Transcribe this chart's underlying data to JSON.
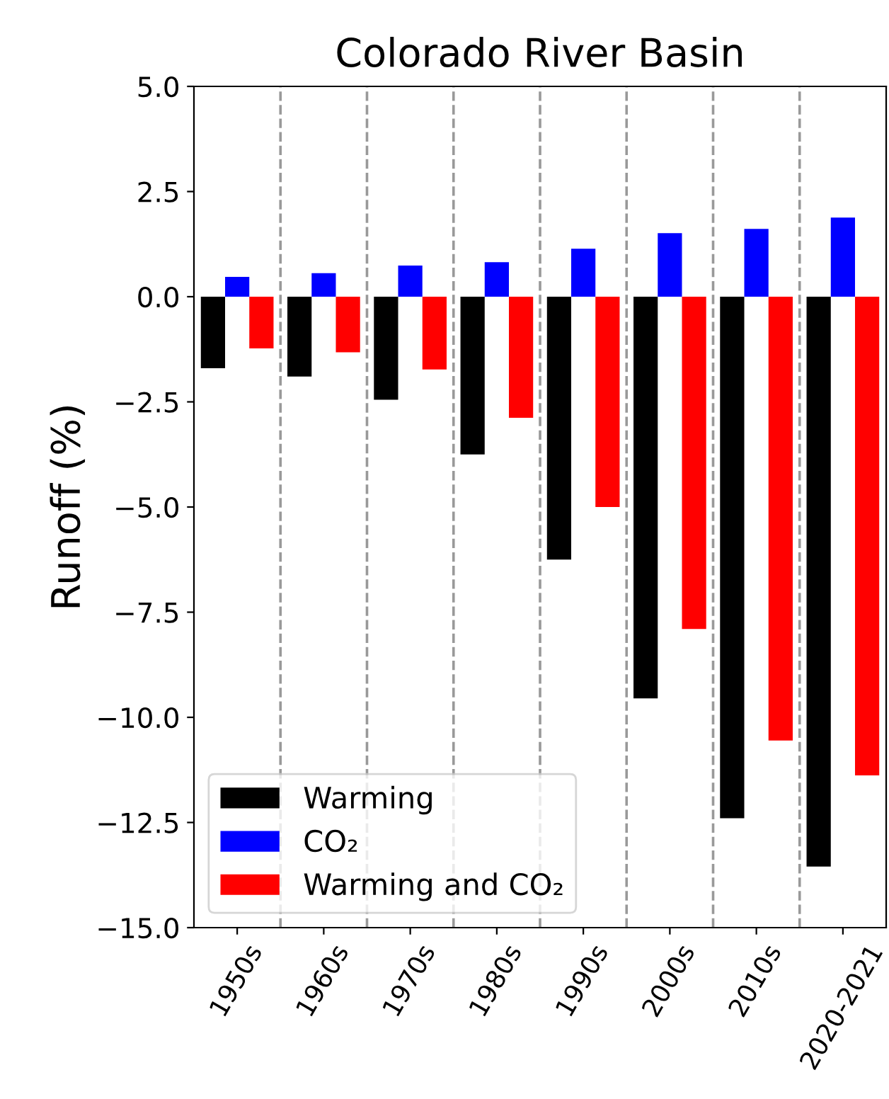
{
  "chart_data": {
    "type": "bar",
    "title": "Colorado River Basin",
    "ylabel": "Runoff (%)",
    "categories": [
      "1950s",
      "1960s",
      "1970s",
      "1980s",
      "1990s",
      "2000s",
      "2010s",
      "2020-2021"
    ],
    "series": [
      {
        "name": "Warming",
        "color": "#000000",
        "values": [
          -1.7,
          -1.9,
          -2.45,
          -3.75,
          -6.25,
          -9.55,
          -12.4,
          -13.55
        ]
      },
      {
        "name": "CO₂",
        "color": "#0000ff",
        "values": [
          0.47,
          0.56,
          0.74,
          0.82,
          1.14,
          1.51,
          1.61,
          1.88
        ]
      },
      {
        "name": "Warming and CO₂",
        "color": "#ff0000",
        "values": [
          -1.23,
          -1.32,
          -1.73,
          -2.88,
          -5.0,
          -7.9,
          -10.55,
          -11.38
        ]
      }
    ],
    "ylim": [
      -15.0,
      5.0
    ],
    "yticks": [
      {
        "value": -15,
        "label": "−15.0"
      },
      {
        "value": -12.5,
        "label": "−12.5"
      },
      {
        "value": -10,
        "label": "−10.0"
      },
      {
        "value": -7.5,
        "label": "−7.5"
      },
      {
        "value": -5,
        "label": "−5.0"
      },
      {
        "value": -2.5,
        "label": "−2.5"
      },
      {
        "value": 0,
        "label": "0.0"
      },
      {
        "value": 2.5,
        "label": "2.5"
      },
      {
        "value": 5,
        "label": "5.0"
      }
    ],
    "legend": "bottom left",
    "grid": false
  }
}
